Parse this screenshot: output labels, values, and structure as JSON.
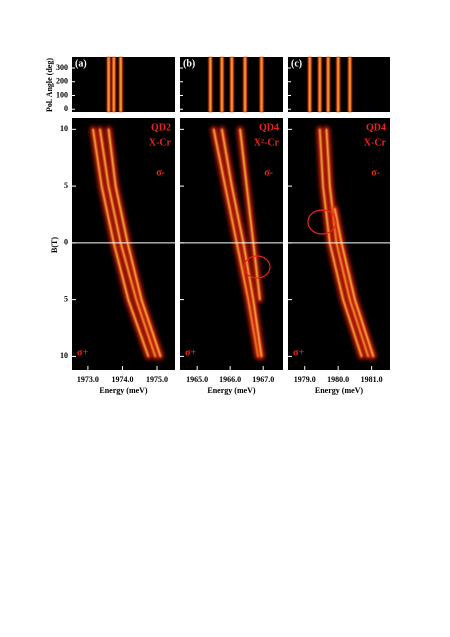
{
  "chart_data": {
    "type": "line",
    "ylabel": "B(T)",
    "ylim": [
      -11.2,
      11
    ],
    "yticks": [
      10,
      5,
      0,
      {
        "value": -5,
        "label": "5"
      },
      {
        "value": -10,
        "label": "10"
      }
    ],
    "pol_label": "Pol. Angle (deg)",
    "pol_lim": [
      -20,
      380
    ],
    "pol_ticks": [
      0,
      100,
      200,
      300
    ],
    "panels": [
      {
        "label": "(a)",
        "dot": "QD2",
        "complex": "X-Cr",
        "sigma_top": "σ-",
        "sigma_bottom": "σ+",
        "xlabel": "Energy (meV)",
        "xlim": [
          1972.54,
          1975.52
        ],
        "xticks": [
          {
            "value": 1973,
            "label": "1973.0"
          },
          {
            "value": 1974,
            "label": "1974.0"
          },
          {
            "value": 1975,
            "label": "1975.0"
          }
        ],
        "stripes": [
          1973.6,
          1973.75,
          1973.95
        ],
        "series": [
          {
            "x": [
              1973.15,
              1973.4,
              1973.75,
              1974.17,
              1974.75
            ],
            "values": [
              10,
              5,
              0,
              -5,
              -10
            ]
          },
          {
            "x": [
              1973.35,
              1973.6,
              1973.95,
              1974.4,
              1974.95
            ],
            "values": [
              10,
              5,
              0,
              -5,
              -10
            ]
          },
          {
            "x": [
              1973.6,
              1973.8,
              1974.15,
              1974.55,
              1975.1
            ],
            "values": [
              10,
              5,
              0,
              -5,
              -10
            ]
          }
        ]
      },
      {
        "label": "(b)",
        "dot": "QD4",
        "complex": "X²-Cr",
        "sigma_top": "σ-",
        "sigma_bottom": "σ+",
        "xlabel": "Energy (meV)",
        "xlim": [
          1964.48,
          1967.6
        ],
        "xticks": [
          {
            "value": 1965,
            "label": "1965.0"
          },
          {
            "value": 1966,
            "label": "1966.0"
          },
          {
            "value": 1967,
            "label": "1967.0"
          }
        ],
        "stripes": [
          1965.4,
          1965.75,
          1966.05,
          1966.45,
          1966.95
        ],
        "series": [
          {
            "x": [
              1965.5,
              1965.85,
              1966.2,
              1966.55,
              1966.85
            ],
            "values": [
              10,
              5,
              0,
              -5,
              -10
            ]
          },
          {
            "x": [
              1965.75,
              1966.05,
              1966.4,
              1966.7,
              1966.95
            ],
            "values": [
              10,
              5,
              0,
              -5,
              -10
            ]
          },
          {
            "x": [
              1966.3,
              1966.5,
              1966.7,
              1966.9
            ],
            "values": [
              10,
              5,
              0,
              -5
            ]
          }
        ]
      },
      {
        "label": "(c)",
        "dot": "QD4",
        "complex": "X-Cr",
        "sigma_top": "σ-",
        "sigma_bottom": "σ+",
        "xlabel": "Energy (meV)",
        "xlim": [
          1978.5,
          1981.55
        ],
        "xticks": [
          {
            "value": 1979,
            "label": "1979.0"
          },
          {
            "value": 1980,
            "label": "1980.0"
          },
          {
            "value": 1981,
            "label": "1981.0"
          }
        ],
        "stripes": [
          1979.15,
          1979.45,
          1979.7,
          1980.0,
          1980.35
        ],
        "series": [
          {
            "x": [
              1979.45,
              1979.55,
              1979.75,
              1980.15,
              1980.7
            ],
            "values": [
              10,
              5,
              0,
              -5,
              -10
            ]
          },
          {
            "x": [
              1979.65,
              1979.75,
              1979.95,
              1980.35,
              1980.9
            ],
            "values": [
              10,
              5,
              0,
              -5,
              -10
            ]
          },
          {
            "x": [
              1979.9,
              1980.1,
              1980.5,
              1981.05
            ],
            "values": [
              3,
              0,
              -5,
              -10
            ]
          }
        ]
      }
    ]
  }
}
